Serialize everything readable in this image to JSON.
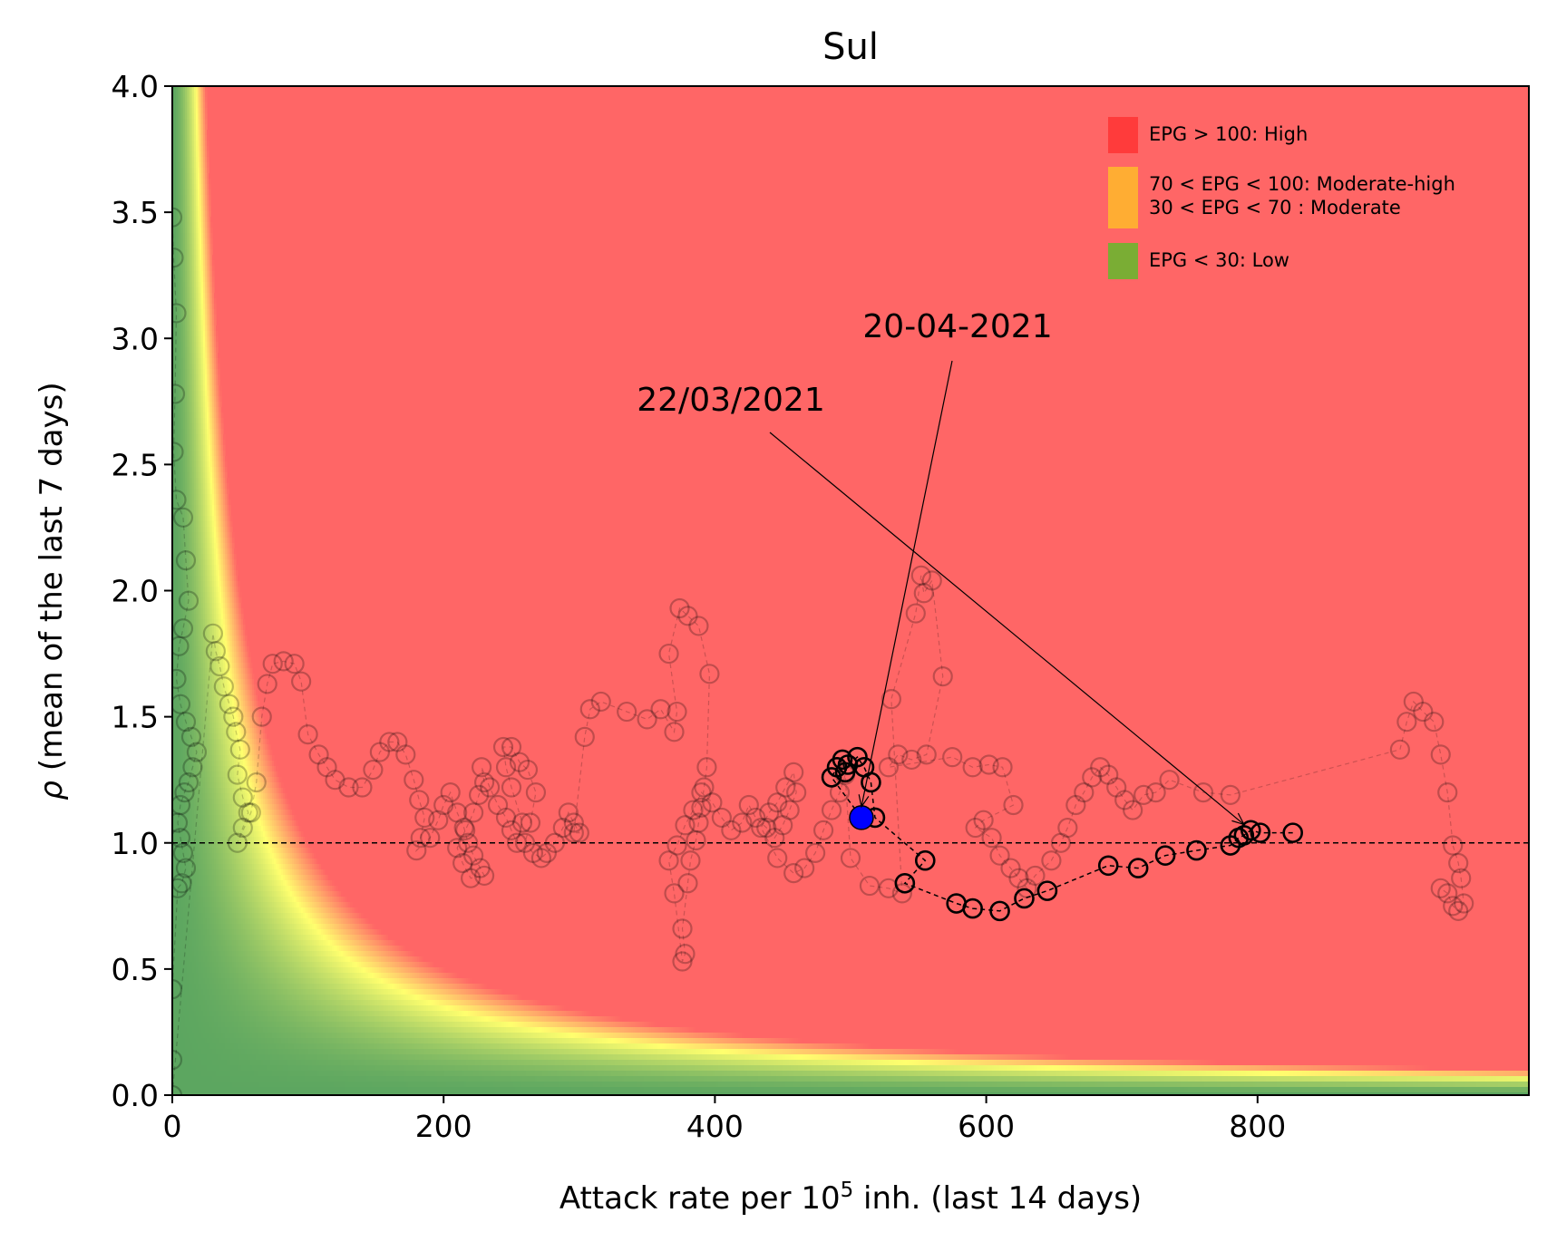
{
  "chart_data": {
    "type": "scatter",
    "title": "Sul",
    "xlabel_main": "Attack rate per 10",
    "xlabel_sup": "5",
    "xlabel_tail": " inh. (last 14 days)",
    "ylabel_symbol": "ρ",
    "ylabel_text": " (mean of the last 7 days)",
    "xlim": [
      0,
      1000
    ],
    "ylim": [
      0,
      4
    ],
    "xticks": [
      0,
      200,
      400,
      600,
      800
    ],
    "yticks": [
      0.0,
      0.5,
      1.0,
      1.5,
      2.0,
      2.5,
      3.0,
      3.5,
      4.0
    ],
    "reference_line_y": 1.0,
    "background": "EPG = attack rate × ρ heatmap (green low → yellow → red high)",
    "legend": {
      "placement": "top-right",
      "items": [
        {
          "label": "EPG > 100: High",
          "color": "#ff3b3b"
        },
        {
          "label": "70 < EPG < 100: Moderate-high\n30 < EPG < 70 : Moderate",
          "color": "#ffad33"
        },
        {
          "label": "EPG < 30: Low",
          "color": "#7aad34"
        }
      ]
    },
    "colors": {
      "high": "#ff6666",
      "moderate": "#ffff66",
      "low": "#5ba65b",
      "current_point": "#0000ff"
    },
    "annotations": [
      {
        "text": "20-04-2021",
        "x_data": 508,
        "y_data": 1.1
      },
      {
        "text": "22/03/2021",
        "x_data": 790,
        "y_data": 1.03
      }
    ],
    "current_point": {
      "x": 508,
      "y": 1.1
    },
    "series": [
      {
        "role": "history",
        "points": [
          [
            0,
            3.48
          ],
          [
            1,
            3.32
          ],
          [
            3,
            3.1
          ],
          [
            2,
            2.78
          ],
          [
            1,
            2.55
          ],
          [
            3,
            2.36
          ],
          [
            8,
            2.29
          ],
          [
            10,
            2.12
          ],
          [
            12,
            1.96
          ],
          [
            8,
            1.85
          ],
          [
            5,
            1.78
          ],
          [
            3,
            1.65
          ],
          [
            6,
            1.55
          ],
          [
            10,
            1.48
          ],
          [
            14,
            1.42
          ],
          [
            18,
            1.36
          ],
          [
            15,
            1.3
          ],
          [
            12,
            1.24
          ],
          [
            9,
            1.2
          ],
          [
            6,
            1.15
          ],
          [
            4,
            1.08
          ],
          [
            6,
            1.02
          ],
          [
            8,
            0.96
          ],
          [
            10,
            0.9
          ],
          [
            7,
            0.84
          ],
          [
            4,
            0.82
          ],
          [
            0,
            0.42
          ],
          [
            0,
            0.14
          ],
          [
            0,
            0.0
          ],
          [
            30,
            1.83
          ],
          [
            32,
            1.76
          ],
          [
            35,
            1.7
          ],
          [
            38,
            1.62
          ],
          [
            42,
            1.55
          ],
          [
            45,
            1.5
          ],
          [
            47,
            1.44
          ],
          [
            50,
            1.37
          ],
          [
            48,
            1.27
          ],
          [
            52,
            1.18
          ],
          [
            56,
            1.12
          ],
          [
            52,
            1.06
          ],
          [
            48,
            1.0
          ],
          [
            58,
            1.12
          ],
          [
            62,
            1.24
          ],
          [
            66,
            1.5
          ],
          [
            70,
            1.63
          ],
          [
            74,
            1.71
          ],
          [
            82,
            1.72
          ],
          [
            90,
            1.71
          ],
          [
            95,
            1.64
          ],
          [
            100,
            1.43
          ],
          [
            108,
            1.35
          ],
          [
            114,
            1.3
          ],
          [
            120,
            1.25
          ],
          [
            130,
            1.22
          ],
          [
            140,
            1.22
          ],
          [
            148,
            1.29
          ],
          [
            153,
            1.36
          ],
          [
            160,
            1.4
          ],
          [
            166,
            1.4
          ],
          [
            172,
            1.35
          ],
          [
            178,
            1.25
          ],
          [
            182,
            1.17
          ],
          [
            186,
            1.1
          ],
          [
            183,
            1.02
          ],
          [
            180,
            0.97
          ],
          [
            190,
            1.02
          ],
          [
            196,
            1.09
          ],
          [
            200,
            1.15
          ],
          [
            205,
            1.2
          ],
          [
            210,
            1.12
          ],
          [
            215,
            1.06
          ],
          [
            218,
            1.0
          ],
          [
            222,
            0.95
          ],
          [
            227,
            0.9
          ],
          [
            230,
            0.87
          ],
          [
            220,
            0.86
          ],
          [
            214,
            0.92
          ],
          [
            210,
            0.98
          ],
          [
            216,
            1.05
          ],
          [
            222,
            1.12
          ],
          [
            226,
            1.19
          ],
          [
            230,
            1.24
          ],
          [
            228,
            1.3
          ],
          [
            234,
            1.22
          ],
          [
            240,
            1.15
          ],
          [
            246,
            1.1
          ],
          [
            250,
            1.05
          ],
          [
            254,
            1.0
          ],
          [
            258,
            1.08
          ],
          [
            250,
            1.22
          ],
          [
            246,
            1.3
          ],
          [
            244,
            1.38
          ],
          [
            250,
            1.38
          ],
          [
            256,
            1.32
          ],
          [
            262,
            1.29
          ],
          [
            268,
            1.2
          ],
          [
            264,
            1.08
          ],
          [
            260,
            1.0
          ],
          [
            266,
            0.96
          ],
          [
            272,
            0.94
          ],
          [
            276,
            0.96
          ],
          [
            282,
            1.0
          ],
          [
            288,
            1.06
          ],
          [
            292,
            1.12
          ],
          [
            296,
            1.08
          ],
          [
            300,
            1.04
          ],
          [
            296,
            1.04
          ],
          [
            304,
            1.42
          ],
          [
            308,
            1.53
          ],
          [
            316,
            1.56
          ],
          [
            335,
            1.52
          ],
          [
            350,
            1.49
          ],
          [
            360,
            1.53
          ],
          [
            370,
            1.44
          ],
          [
            372,
            1.52
          ],
          [
            366,
            1.75
          ],
          [
            374,
            1.93
          ],
          [
            380,
            1.9
          ],
          [
            388,
            1.86
          ],
          [
            396,
            1.67
          ],
          [
            394,
            1.3
          ],
          [
            392,
            1.22
          ],
          [
            390,
            1.14
          ],
          [
            388,
            1.08
          ],
          [
            386,
            1.01
          ],
          [
            382,
            0.93
          ],
          [
            380,
            0.84
          ],
          [
            376,
            0.66
          ],
          [
            378,
            0.56
          ],
          [
            376,
            0.53
          ],
          [
            370,
            0.8
          ],
          [
            366,
            0.93
          ],
          [
            372,
            0.99
          ],
          [
            378,
            1.07
          ],
          [
            384,
            1.13
          ],
          [
            390,
            1.2
          ],
          [
            398,
            1.16
          ],
          [
            405,
            1.1
          ],
          [
            412,
            1.05
          ],
          [
            420,
            1.08
          ],
          [
            425,
            1.15
          ],
          [
            430,
            1.1
          ],
          [
            438,
            1.06
          ],
          [
            444,
            1.02
          ],
          [
            450,
            1.07
          ],
          [
            455,
            1.13
          ],
          [
            460,
            1.2
          ],
          [
            458,
            1.28
          ],
          [
            452,
            1.22
          ],
          [
            446,
            1.16
          ],
          [
            440,
            1.12
          ],
          [
            434,
            1.06
          ],
          [
            446,
            0.94
          ],
          [
            458,
            0.88
          ],
          [
            466,
            0.9
          ],
          [
            474,
            0.96
          ],
          [
            480,
            1.05
          ],
          [
            486,
            1.13
          ],
          [
            492,
            1.2
          ],
          [
            496,
            1.27
          ],
          [
            500,
            0.94
          ],
          [
            514,
            0.83
          ],
          [
            528,
            0.82
          ],
          [
            538,
            0.8
          ],
          [
            530,
            1.57
          ],
          [
            548,
            1.91
          ],
          [
            552,
            2.06
          ],
          [
            554,
            1.99
          ],
          [
            560,
            2.04
          ],
          [
            568,
            1.66
          ],
          [
            556,
            1.35
          ],
          [
            545,
            1.33
          ],
          [
            535,
            1.35
          ],
          [
            528,
            1.3
          ],
          [
            575,
            1.34
          ],
          [
            590,
            1.3
          ],
          [
            602,
            1.31
          ],
          [
            612,
            1.3
          ],
          [
            620,
            1.15
          ],
          [
            598,
            1.09
          ],
          [
            592,
            1.06
          ],
          [
            604,
            1.02
          ],
          [
            610,
            0.95
          ],
          [
            618,
            0.9
          ],
          [
            624,
            0.86
          ],
          [
            630,
            0.82
          ],
          [
            636,
            0.87
          ],
          [
            648,
            0.93
          ],
          [
            655,
            1.0
          ],
          [
            660,
            1.06
          ],
          [
            666,
            1.15
          ],
          [
            672,
            1.2
          ],
          [
            678,
            1.26
          ],
          [
            684,
            1.3
          ],
          [
            690,
            1.27
          ],
          [
            696,
            1.22
          ],
          [
            702,
            1.17
          ],
          [
            708,
            1.13
          ],
          [
            716,
            1.19
          ],
          [
            725,
            1.2
          ],
          [
            735,
            1.25
          ],
          [
            760,
            1.2
          ],
          [
            780,
            1.19
          ],
          [
            905,
            1.37
          ],
          [
            910,
            1.48
          ],
          [
            915,
            1.56
          ],
          [
            922,
            1.52
          ],
          [
            930,
            1.48
          ],
          [
            935,
            1.35
          ],
          [
            940,
            1.2
          ],
          [
            944,
            0.99
          ],
          [
            948,
            0.92
          ],
          [
            950,
            0.86
          ],
          [
            952,
            0.76
          ],
          [
            948,
            0.73
          ],
          [
            944,
            0.75
          ],
          [
            940,
            0.8
          ],
          [
            935,
            0.82
          ]
        ]
      },
      {
        "role": "recent",
        "points": [
          [
            826,
            1.04
          ],
          [
            802,
            1.04
          ],
          [
            795,
            1.05
          ],
          [
            790,
            1.03
          ],
          [
            786,
            1.02
          ],
          [
            780,
            0.99
          ],
          [
            755,
            0.97
          ],
          [
            732,
            0.95
          ],
          [
            712,
            0.9
          ],
          [
            690,
            0.91
          ],
          [
            645,
            0.81
          ],
          [
            628,
            0.78
          ],
          [
            610,
            0.73
          ],
          [
            590,
            0.74
          ],
          [
            578,
            0.76
          ],
          [
            540,
            0.84
          ],
          [
            555,
            0.93
          ],
          [
            518,
            1.1
          ],
          [
            515,
            1.24
          ],
          [
            510,
            1.3
          ],
          [
            505,
            1.34
          ],
          [
            498,
            1.31
          ],
          [
            496,
            1.28
          ],
          [
            494,
            1.33
          ],
          [
            490,
            1.3
          ],
          [
            486,
            1.26
          ],
          [
            508,
            1.1
          ]
        ]
      }
    ]
  }
}
